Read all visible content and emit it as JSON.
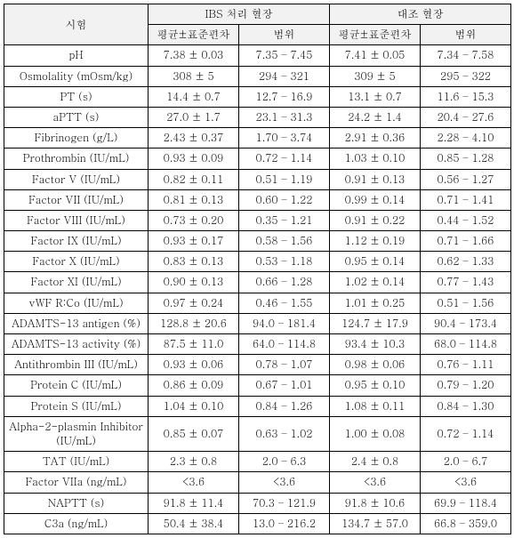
{
  "header": {
    "test": "시험",
    "group_a": "IBS 처리 혈장",
    "group_b": "대조 혈장",
    "mean_sd": "평균±표준편차",
    "range": "범위"
  },
  "rows": [
    {
      "label": "pH",
      "a_mean": "7.38 ± 0.03",
      "a_range": "7.35 – 7.45",
      "b_mean": "7.41 ± 0.05",
      "b_range": "7.34 – 7.58"
    },
    {
      "label": "Osmolality (mOsm/kg)",
      "a_mean": "308 ± 5",
      "a_range": "294 – 321",
      "b_mean": "309 ± 5",
      "b_range": "295 – 322"
    },
    {
      "label": "PT (s)",
      "a_mean": "14.4 ± 0.7",
      "a_range": "12.7 – 16.9",
      "b_mean": "13.1 ± 0.7",
      "b_range": "11.6 – 15.3"
    },
    {
      "label": "aPTT (s)",
      "a_mean": "27.0 ± 1.7",
      "a_range": "23.1 – 31.3",
      "b_mean": "24.2 ± 1.4",
      "b_range": "20.4 – 27.6"
    },
    {
      "label": "Fibrinogen (g/L)",
      "a_mean": "2.43 ± 0.37",
      "a_range": "1.70 – 3.74",
      "b_mean": "2.91 ± 0.36",
      "b_range": "2.28 – 4.10"
    },
    {
      "label": "Prothrombin (IU/mL)",
      "a_mean": "0.93 ± 0.09",
      "a_range": "0.72 – 1.14",
      "b_mean": "1.03 ± 0.10",
      "b_range": "0.85 – 1.28"
    },
    {
      "label": "Factor V (IU/mL)",
      "a_mean": "0.82 ± 0.11",
      "a_range": "0.51 – 1.19",
      "b_mean": "0.91 ± 0.13",
      "b_range": "0.56 – 1.27"
    },
    {
      "label": "Factor VII (IU/mL)",
      "a_mean": "0.81 ± 0.13",
      "a_range": "0.60 – 1.22",
      "b_mean": "0.99 ± 0.14",
      "b_range": "0.71 – 1.41"
    },
    {
      "label": "Factor VIII (IU/mL)",
      "a_mean": "0.73 ± 0.20",
      "a_range": "0.35 – 1.21",
      "b_mean": "0.91 ± 0.22",
      "b_range": "0.44 – 1.52"
    },
    {
      "label": "Factor IX (IU/mL)",
      "a_mean": "0.93 ± 0.17",
      "a_range": "0.58 – 1.56",
      "b_mean": "1.12 ± 0.19",
      "b_range": "0.71 – 1.66"
    },
    {
      "label": "Factor X (IU/mL)",
      "a_mean": "0.83 ± 0.13",
      "a_range": "0.53 – 1.18",
      "b_mean": "0.95 ± 0.14",
      "b_range": "0.62 – 1.33"
    },
    {
      "label": "Factor XI (IU/mL)",
      "a_mean": "0.90 ± 0.13",
      "a_range": "0.66 – 1.28",
      "b_mean": "1.02 ± 0.14",
      "b_range": "0.77 – 1.43"
    },
    {
      "label": "vWF R:Co (IU/mL)",
      "a_mean": "0.97 ± 0.24",
      "a_range": "0.46 – 1.55",
      "b_mean": "1.01 ± 0.25",
      "b_range": "0.51 – 1.56"
    },
    {
      "label": "ADAMTS-13 antigen (%)",
      "a_mean": "128.8 ± 20.6",
      "a_range": "94.0 – 181.4",
      "b_mean": "124.7 ± 17.9",
      "b_range": "90.4 – 173.4"
    },
    {
      "label": "ADAMTS-13 activity (%)",
      "a_mean": "87.5 ± 11.0",
      "a_range": "64.0 – 114.8",
      "b_mean": "93.4 ± 10.3",
      "b_range": "68.0 – 114.8"
    },
    {
      "label": "Antithrombin III (IU/mL)",
      "a_mean": "0.93 ± 0.06",
      "a_range": "0.78 – 1.07",
      "b_mean": "0.98 ± 0.06",
      "b_range": "0.76 – 1.11"
    },
    {
      "label": "Protein C (IU/mL)",
      "a_mean": "0.86 ± 0.09",
      "a_range": "0.67 – 1.01",
      "b_mean": "0.95 ± 0.10",
      "b_range": "0.79 – 1.20"
    },
    {
      "label": "Protein S (IU/mL)",
      "a_mean": "1.04 ± 0.10",
      "a_range": "0.84 – 1.26",
      "b_mean": "1.08 ± 0.11",
      "b_range": "0.84 – 1.30"
    },
    {
      "label": "Alpha-2-plasmin Inhibitor (IU/mL)",
      "a_mean": "0.85 ± 0.07",
      "a_range": "0.63 – 1.02",
      "b_mean": "1.00 ± 0.08",
      "b_range": "0.72 – 1.14"
    },
    {
      "label": "TAT (IU/mL)",
      "a_mean": "2.3 ± 0.8",
      "a_range": "2.0 – 6.3",
      "b_mean": "2.4 ± 0.8",
      "b_range": "2.0 – 6.7"
    },
    {
      "label": "Factor VIIa (ng/mL)",
      "a_mean": "<3.6",
      "a_range": "<3.6",
      "b_mean": "<3.6",
      "b_range": "<3.6"
    },
    {
      "label": "NAPTT (s)",
      "a_mean": "91.8 ± 11.4",
      "a_range": "70.3 – 121.9",
      "b_mean": "91.8 ± 10.6",
      "b_range": "69.9 – 118.4"
    },
    {
      "label": "C3a (ng/mL)",
      "a_mean": "50.4 ± 38.4",
      "a_range": "13.0 – 216.2",
      "b_mean": "134.7 ± 57.0",
      "b_range": "66.8 – 359.0"
    }
  ],
  "style": {
    "header_bg": "#f2f2f2",
    "border_color": "#000000",
    "font_size": 12
  }
}
